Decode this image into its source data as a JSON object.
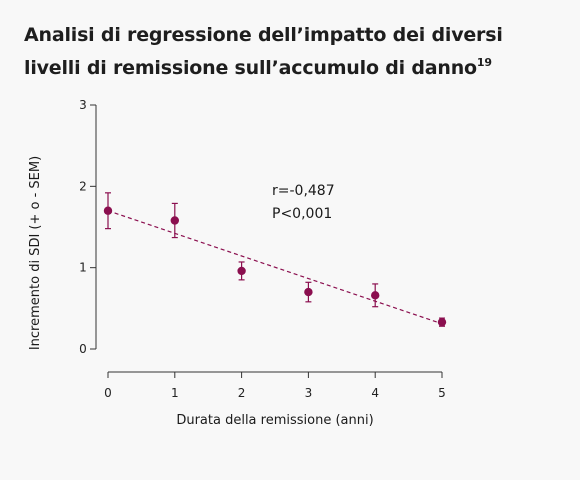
{
  "title": "Analisi di regressione dell’impatto dei diversi livelli di remissione sull’accumulo di danno",
  "title_superscript": "19",
  "colors": {
    "point": "#8b0f4f",
    "line": "#8b0f4f",
    "axis": "#333333"
  },
  "chart_data": {
    "type": "scatter",
    "xlabel": "Durata della remissione (anni)",
    "ylabel": "Incremento di SDI (+ o - SEM)",
    "xlim": [
      0,
      5
    ],
    "ylim": [
      0,
      3
    ],
    "x_ticks": [
      "0",
      "1",
      "2",
      "3",
      "4",
      "5"
    ],
    "y_ticks": [
      "0",
      "1",
      "2",
      "3"
    ],
    "grid": false,
    "points": [
      {
        "x": 0,
        "y": 1.7,
        "err": 0.22
      },
      {
        "x": 1,
        "y": 1.58,
        "err": 0.21
      },
      {
        "x": 2,
        "y": 0.96,
        "err": 0.11
      },
      {
        "x": 3,
        "y": 0.7,
        "err": 0.12
      },
      {
        "x": 4,
        "y": 0.66,
        "err": 0.14
      },
      {
        "x": 5,
        "y": 0.33,
        "err": 0.05
      }
    ],
    "regression": {
      "x": [
        0,
        5
      ],
      "y": [
        1.7,
        0.31
      ],
      "style": "dashed"
    },
    "annotations": [
      "r=-0,487",
      "P<0,001"
    ]
  }
}
